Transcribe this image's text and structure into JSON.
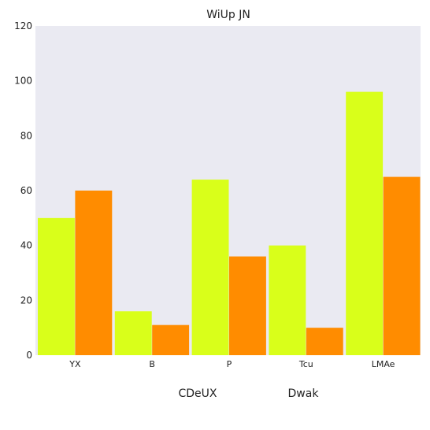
{
  "chart_data": {
    "type": "bar",
    "title": "WiUp JN",
    "xlabel": "",
    "ylabel": "",
    "categories": [
      "YX",
      "B",
      "P",
      "Tcu",
      "LMAe"
    ],
    "series": [
      {
        "name": "CDeUX",
        "values": [
          50,
          16,
          64,
          40,
          96
        ],
        "color": "#d9ff1a"
      },
      {
        "name": "Dwak",
        "values": [
          60,
          11,
          36,
          10,
          65
        ],
        "color": "#ff8c00"
      }
    ],
    "ylim": [
      0,
      120
    ],
    "yticks": [
      0,
      20,
      40,
      60,
      80,
      100,
      120
    ],
    "grid": false,
    "legend_position": "bottom-center",
    "plot_background": "#eaeaf2"
  }
}
